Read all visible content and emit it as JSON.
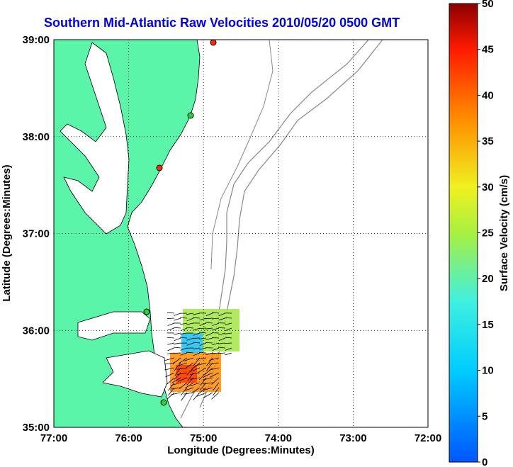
{
  "title": "Southern Mid-Atlantic Raw Velocities 2010/05/20 0500 GMT",
  "map": {
    "xlabel": "Longitude (Degrees:Minutes)",
    "ylabel": "Latitude (Degrees:Minutes)",
    "x_ticks": [
      "77:00",
      "76:00",
      "75:00",
      "74:00",
      "73:00",
      "72:00"
    ],
    "y_ticks": [
      "39:00",
      "38:00",
      "37:00",
      "36:00",
      "35:00"
    ],
    "grid": "dotted",
    "land_color": "#5af5a8",
    "bathymetry_color": "#888888",
    "station_colors": [
      "#ff2a00",
      "#2ad43a"
    ]
  },
  "colorbar": {
    "label": "Surface Velocity (cm/s)",
    "ticks": [
      "50",
      "45",
      "40",
      "35",
      "30",
      "25",
      "20",
      "15",
      "10",
      "5",
      "0"
    ],
    "colormap": "jet",
    "range": [
      0,
      50
    ]
  }
}
